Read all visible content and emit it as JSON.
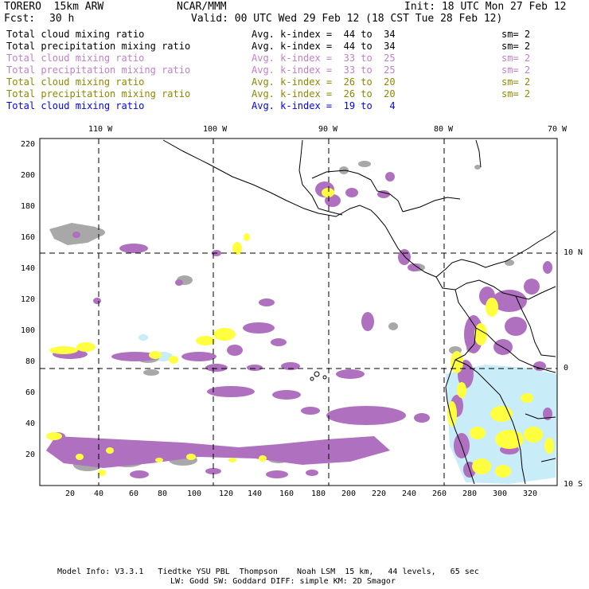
{
  "header": {
    "model": "TORERO  15km ARW",
    "org": "NCAR/MMM",
    "init": "Init: 18 UTC Mon 27 Feb 12",
    "fcst_label": "Fcst:",
    "fcst_value": "30 h",
    "valid": "Valid: 00 UTC Wed 29 Feb 12 (18 CST Tue 28 Feb 12)"
  },
  "legend": [
    {
      "field": "Total cloud mixing ratio",
      "range": "Avg. k-index =  44 to  34",
      "sm": "sm= 2",
      "color": "#000000"
    },
    {
      "field": "Total precipitation mixing ratio",
      "range": "Avg. k-index =  44 to  34",
      "sm": "sm= 2",
      "color": "#000000"
    },
    {
      "field": "Total cloud mixing ratio",
      "range": "Avg. k-index =  33 to  25",
      "sm": "sm= 2",
      "color": "#c080c8"
    },
    {
      "field": "Total precipitation mixing ratio",
      "range": "Avg. k-index =  33 to  25",
      "sm": "sm= 2",
      "color": "#c080c8"
    },
    {
      "field": "Total cloud mixing ratio",
      "range": "Avg. k-index =  26 to  20",
      "sm": "sm= 2",
      "color": "#8a8a00"
    },
    {
      "field": "Total precipitation mixing ratio",
      "range": "Avg. k-index =  26 to  20",
      "sm": "sm= 2",
      "color": "#8a8a00"
    },
    {
      "field": "Total cloud mixing ratio",
      "range": "Avg. k-index =  19 to   4",
      "sm": "",
      "color": "#0000ff"
    }
  ],
  "axes": {
    "top_lon_labels": [
      "110 W",
      "100 W",
      "90 W",
      "80 W",
      "70 W"
    ],
    "right_lat_labels": [
      "10 N",
      "0",
      "10 S"
    ],
    "y_ticks": [
      "220",
      "200",
      "180",
      "160",
      "140",
      "120",
      "100",
      "80",
      "60",
      "40",
      "20"
    ],
    "x_ticks": [
      "20",
      "40",
      "60",
      "80",
      "100",
      "120",
      "140",
      "160",
      "180",
      "200",
      "220",
      "240",
      "260",
      "280",
      "300",
      "320"
    ]
  },
  "colors": {
    "gray": "#a8a8a8",
    "purple": "#b070c0",
    "yellow": "#ffff40",
    "lightblue": "#c8ecf8",
    "coast": "#000000"
  },
  "footer": {
    "line1": "Model Info: V3.3.1   Tiedtke YSU PBL  Thompson    Noah LSM  15 km,   44 levels,   65 sec",
    "line2": "LW: Godd SW: Goddard DIFF: simple KM: 2D Smagor"
  }
}
